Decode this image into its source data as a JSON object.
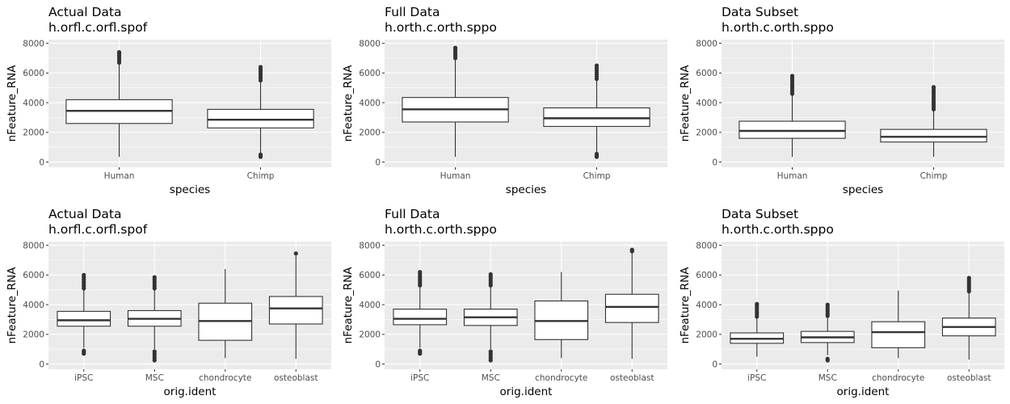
{
  "chart_data": [
    {
      "type": "boxplot",
      "title": "Actual Data",
      "subtitle": "h.orfl.c.orfl.spof",
      "xlabel": "species",
      "ylabel": "nFeature_RNA",
      "ylim": [
        -350,
        8250
      ],
      "yticks": [
        0,
        2000,
        4000,
        6000,
        8000
      ],
      "grid": true,
      "categories": [
        "Human",
        "Chimp"
      ],
      "boxes": [
        {
          "lower_whisker": 350,
          "q1": 2600,
          "median": 3450,
          "q3": 4200,
          "upper_whisker": 6600,
          "outliers": [
            6700,
            6850,
            7000,
            7150,
            7300,
            7400
          ]
        },
        {
          "lower_whisker": 600,
          "q1": 2300,
          "median": 2850,
          "q3": 3550,
          "upper_whisker": 5400,
          "outliers": [
            5500,
            5650,
            5800,
            5950,
            6100,
            6250,
            6400,
            350,
            450,
            500
          ]
        }
      ]
    },
    {
      "type": "boxplot",
      "title": "Full Data",
      "subtitle": "h.orth.c.orth.sppo",
      "xlabel": "species",
      "ylabel": "nFeature_RNA",
      "ylim": [
        -350,
        8250
      ],
      "yticks": [
        0,
        2000,
        4000,
        6000,
        8000
      ],
      "grid": true,
      "categories": [
        "Human",
        "Chimp"
      ],
      "boxes": [
        {
          "lower_whisker": 350,
          "q1": 2700,
          "median": 3550,
          "q3": 4350,
          "upper_whisker": 6900,
          "outliers": [
            7000,
            7150,
            7300,
            7450,
            7600,
            7700
          ]
        },
        {
          "lower_whisker": 600,
          "q1": 2400,
          "median": 2950,
          "q3": 3650,
          "upper_whisker": 5500,
          "outliers": [
            5600,
            5750,
            5900,
            6050,
            6200,
            6350,
            6500,
            350,
            450,
            550
          ]
        }
      ]
    },
    {
      "type": "boxplot",
      "title": "Data Subset",
      "subtitle": "h.orth.c.orth.sppo",
      "xlabel": "species",
      "ylabel": "nFeature_RNA",
      "ylim": [
        -350,
        8250
      ],
      "yticks": [
        0,
        2000,
        4000,
        6000,
        8000
      ],
      "grid": true,
      "categories": [
        "Human",
        "Chimp"
      ],
      "boxes": [
        {
          "lower_whisker": 350,
          "q1": 1600,
          "median": 2100,
          "q3": 2750,
          "upper_whisker": 4500,
          "outliers": [
            4600,
            4750,
            4900,
            5050,
            5200,
            5350,
            5500,
            5650,
            5800
          ]
        },
        {
          "lower_whisker": 350,
          "q1": 1350,
          "median": 1700,
          "q3": 2200,
          "upper_whisker": 3450,
          "outliers": [
            3550,
            3700,
            3850,
            4000,
            4150,
            4300,
            4450,
            4600,
            4750,
            4900,
            5050
          ]
        }
      ]
    },
    {
      "type": "boxplot",
      "title": "Actual Data",
      "subtitle": "h.orfl.c.orfl.spof",
      "xlabel": "orig.ident",
      "ylabel": "nFeature_RNA",
      "ylim": [
        -350,
        8250
      ],
      "yticks": [
        0,
        2000,
        4000,
        6000,
        8000
      ],
      "grid": true,
      "categories": [
        "iPSC",
        "MSC",
        "chondrocyte",
        "osteoblast"
      ],
      "boxes": [
        {
          "lower_whisker": 1100,
          "q1": 2550,
          "median": 2950,
          "q3": 3550,
          "upper_whisker": 5000,
          "outliers": [
            5100,
            5250,
            5400,
            5550,
            5700,
            5850,
            6000,
            700,
            800,
            900
          ]
        },
        {
          "lower_whisker": 1000,
          "q1": 2550,
          "median": 3050,
          "q3": 3600,
          "upper_whisker": 5000,
          "outliers": [
            5100,
            5250,
            5400,
            5550,
            5700,
            5850,
            250,
            400,
            550,
            700,
            850
          ]
        },
        {
          "lower_whisker": 400,
          "q1": 1600,
          "median": 2900,
          "q3": 4100,
          "upper_whisker": 6400,
          "outliers": []
        },
        {
          "lower_whisker": 350,
          "q1": 2700,
          "median": 3750,
          "q3": 4550,
          "upper_whisker": 7300,
          "outliers": [
            7450
          ]
        }
      ]
    },
    {
      "type": "boxplot",
      "title": "Full Data",
      "subtitle": "h.orth.c.orth.sppo",
      "xlabel": "orig.ident",
      "ylabel": "nFeature_RNA",
      "ylim": [
        -350,
        8250
      ],
      "yticks": [
        0,
        2000,
        4000,
        6000,
        8000
      ],
      "grid": true,
      "categories": [
        "iPSC",
        "MSC",
        "chondrocyte",
        "osteoblast"
      ],
      "boxes": [
        {
          "lower_whisker": 1100,
          "q1": 2650,
          "median": 3050,
          "q3": 3700,
          "upper_whisker": 5200,
          "outliers": [
            5300,
            5450,
            5600,
            5750,
            5900,
            6050,
            6200,
            700,
            800,
            900
          ]
        },
        {
          "lower_whisker": 1000,
          "q1": 2600,
          "median": 3150,
          "q3": 3700,
          "upper_whisker": 5200,
          "outliers": [
            5300,
            5450,
            5600,
            5750,
            5900,
            6050,
            250,
            400,
            550,
            700,
            850
          ]
        },
        {
          "lower_whisker": 400,
          "q1": 1650,
          "median": 2900,
          "q3": 4250,
          "upper_whisker": 6200,
          "outliers": []
        },
        {
          "lower_whisker": 350,
          "q1": 2800,
          "median": 3850,
          "q3": 4700,
          "upper_whisker": 7500,
          "outliers": [
            7600,
            7700
          ]
        }
      ]
    },
    {
      "type": "boxplot",
      "title": "Data Subset",
      "subtitle": "h.orth.c.orth.sppo",
      "xlabel": "orig.ident",
      "ylabel": "nFeature_RNA",
      "ylim": [
        -350,
        8250
      ],
      "yticks": [
        0,
        2000,
        4000,
        6000,
        8000
      ],
      "grid": true,
      "categories": [
        "iPSC",
        "MSC",
        "chondrocyte",
        "osteoblast"
      ],
      "boxes": [
        {
          "lower_whisker": 500,
          "q1": 1400,
          "median": 1700,
          "q3": 2100,
          "upper_whisker": 3100,
          "outliers": [
            3200,
            3350,
            3500,
            3650,
            3800,
            3950,
            4050
          ]
        },
        {
          "lower_whisker": 600,
          "q1": 1450,
          "median": 1800,
          "q3": 2200,
          "upper_whisker": 3150,
          "outliers": [
            3250,
            3400,
            3550,
            3700,
            3850,
            4000,
            250,
            350
          ]
        },
        {
          "lower_whisker": 400,
          "q1": 1100,
          "median": 2150,
          "q3": 2850,
          "upper_whisker": 4950,
          "outliers": []
        },
        {
          "lower_whisker": 300,
          "q1": 1900,
          "median": 2500,
          "q3": 3100,
          "upper_whisker": 4800,
          "outliers": [
            4900,
            5050,
            5200,
            5350,
            5500,
            5650,
            5800
          ]
        }
      ]
    }
  ]
}
